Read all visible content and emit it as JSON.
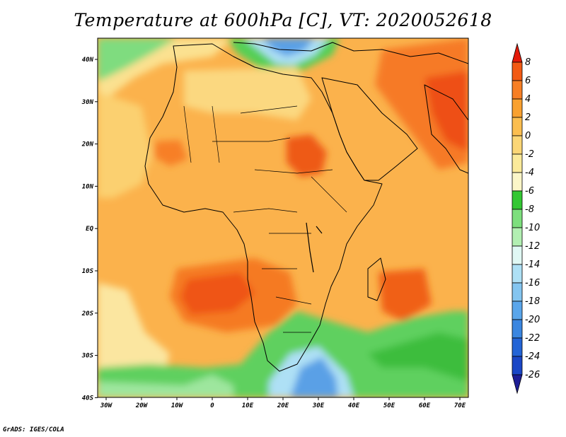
{
  "title": "Temperature at 600hPa [C], VT: 2020052618",
  "footer": "GrADS: IGES/COLA",
  "colors": {
    "ocean_base": "#fbb24c",
    "cold_blue": "#4d8fe0",
    "light_blue": "#aee0f5",
    "pale_cyan": "#d9f5f0",
    "green_light": "#8fe08f",
    "green_mid": "#55cf55",
    "green_dark": "#2fb52f",
    "pale_yellow": "#fbea9a",
    "light_orange": "#fbcf70",
    "orange": "#f7a030",
    "dark_orange": "#f67a25",
    "red_orange": "#ee5013",
    "border": "#000000"
  },
  "map": {
    "lon_range": [
      -30,
      75
    ],
    "lat_range": [
      -40,
      45
    ],
    "x_ticks": [
      "30W",
      "20W",
      "10W",
      "0",
      "10E",
      "20E",
      "30E",
      "40E",
      "50E",
      "60E",
      "70E"
    ],
    "y_ticks": [
      "40N",
      "30N",
      "20N",
      "10N",
      "EQ",
      "10S",
      "20S",
      "30S",
      "40S"
    ]
  },
  "colorbar": {
    "labels": [
      "8",
      "6",
      "4",
      "2",
      "0",
      "-2",
      "-4",
      "-6",
      "-8",
      "-10",
      "-12",
      "-14",
      "-16",
      "-18",
      "-20",
      "-22",
      "-24",
      "-26"
    ],
    "colors": [
      "#e41a0a",
      "#f25a14",
      "#f77f25",
      "#f9a130",
      "#fbbe50",
      "#fbd676",
      "#fbea9a",
      "#fbf6c8",
      "#33c733",
      "#7ddf7d",
      "#b2efb2",
      "#e0f8f4",
      "#aee0f5",
      "#84c5f0",
      "#5aa6eb",
      "#3a86e0",
      "#2364d6",
      "#1a47c6",
      "#1e1e96"
    ]
  }
}
